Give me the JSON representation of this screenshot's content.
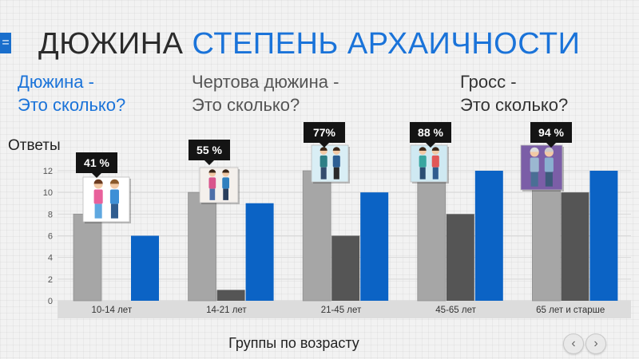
{
  "menu_badge": "=",
  "title": {
    "part1": "ДЮЖИНА",
    "part2": "СТЕПЕНЬ АРХАИЧНОСТИ"
  },
  "questions": [
    {
      "line1": "Дюжина -",
      "line2": "Это сколько?"
    },
    {
      "line1": "Чертова дюжина -",
      "line2": "Это сколько?"
    },
    {
      "line1": "Гросс -",
      "line2": "Это сколько?"
    }
  ],
  "nav": {
    "prev": "‹",
    "next": "›"
  },
  "colors": {
    "light": "#a6a6a6",
    "dark": "#555555",
    "blue": "#0b63c5",
    "title_accent": "#1a73d9"
  },
  "chart_data": {
    "type": "bar",
    "ylabel": "Ответы",
    "xlabel": "Группы по возрасту",
    "categories": [
      "10-14 лет",
      "14-21 лет",
      "21-45 лет",
      "45-65 лет",
      "65 лет и старше"
    ],
    "series": [
      {
        "values": [
          8,
          10,
          12,
          12,
          12
        ],
        "color": "#a6a6a6"
      },
      {
        "values": [
          0,
          1,
          6,
          8,
          10
        ],
        "color": "#555555"
      },
      {
        "values": [
          6,
          9,
          10,
          12,
          12
        ],
        "color": "#0b63c5"
      }
    ],
    "ylim": [
      0,
      12
    ],
    "yticks": [
      0,
      2,
      4,
      6,
      8,
      10,
      12
    ],
    "grid": true,
    "annotations": [
      "41 %",
      "55 %",
      "77%",
      "88 %",
      "94 %"
    ],
    "icons": [
      "kids-couple-icon",
      "teen-couple-icon",
      "adult-couple-icon",
      "middle-aged-couple-icon",
      "elderly-couple-icon"
    ]
  }
}
